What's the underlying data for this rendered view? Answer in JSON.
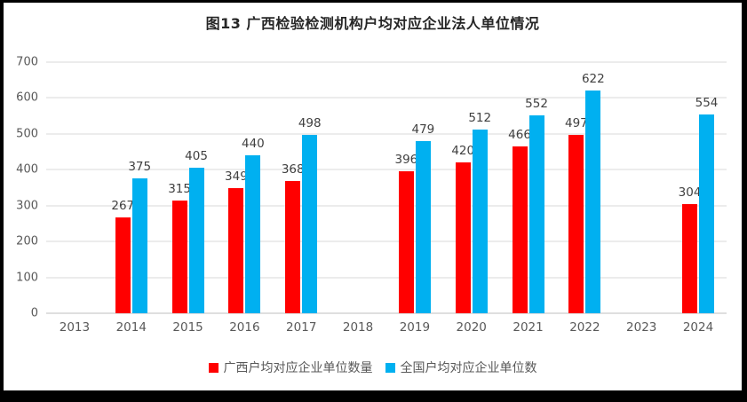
{
  "chart_data": {
    "type": "bar",
    "title": "图13 广西检验检测机构户均对应企业法人单位情况",
    "categories": [
      "2013",
      "2014",
      "2015",
      "2016",
      "2017",
      "2018",
      "2019",
      "2020",
      "2021",
      "2022",
      "2023",
      "2024"
    ],
    "series": [
      {
        "name": "广西户均对应企业单位数量",
        "color": "#ff0000",
        "values": [
          null,
          267,
          315,
          349,
          368,
          null,
          396,
          420,
          466,
          497,
          null,
          304
        ]
      },
      {
        "name": "全国户均对应企业单位数",
        "color": "#00b0f0",
        "values": [
          null,
          375,
          405,
          440,
          498,
          null,
          479,
          512,
          552,
          622,
          null,
          554
        ]
      }
    ],
    "ylim": [
      0,
      700
    ],
    "yticks": [
      0,
      100,
      200,
      300,
      400,
      500,
      600,
      700
    ],
    "grid": true,
    "legend_position": "bottom",
    "colors": {
      "gridline": "#d9d9d9",
      "axis_line": "#bfbfbf",
      "tick_text": "#595959",
      "value_label_text": "#404040",
      "title_text": "#262626"
    }
  }
}
